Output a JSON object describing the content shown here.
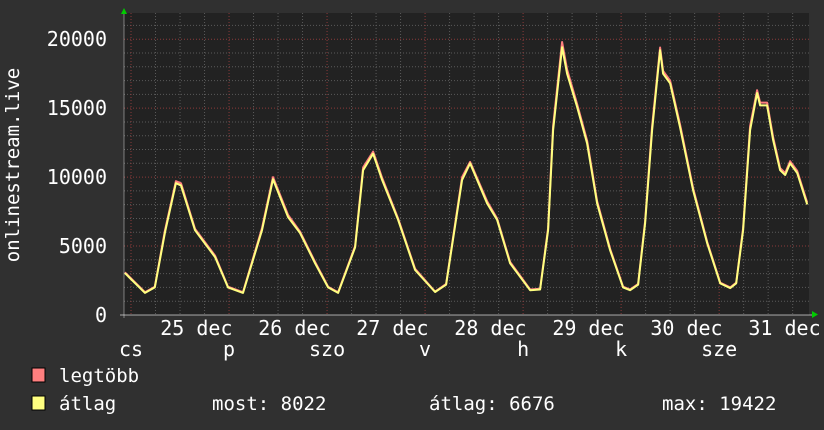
{
  "chart_data": {
    "type": "line",
    "ylabel": "onlinestream.live",
    "ylim": [
      0,
      21900
    ],
    "xlim": [
      "12-24 22:17",
      "12-31 22:00"
    ],
    "grid": true,
    "y_ticks": [
      0,
      5000,
      10000,
      15000,
      20000
    ],
    "x_tick_labels": [
      {
        "label": "cs",
        "at": "12-25 00:00"
      },
      {
        "label": "25 dec",
        "at": "12-25 16:00"
      },
      {
        "label": "p",
        "at": "12-26 00:00"
      },
      {
        "label": "26 dec",
        "at": "12-26 16:00"
      },
      {
        "label": "szo",
        "at": "12-27 00:00"
      },
      {
        "label": "27 dec",
        "at": "12-27 16:00"
      },
      {
        "label": "v",
        "at": "12-28 00:00"
      },
      {
        "label": "28 dec",
        "at": "12-28 16:00"
      },
      {
        "label": "h",
        "at": "12-29 00:00"
      },
      {
        "label": "29 dec",
        "at": "12-29 16:00"
      },
      {
        "label": "k",
        "at": "12-30 00:00"
      },
      {
        "label": "30 dec",
        "at": "12-30 16:00"
      },
      {
        "label": "sze",
        "at": "12-31 00:00"
      },
      {
        "label": "31 dec",
        "at": "12-31 16:00"
      }
    ],
    "x": [
      "12-24 22:30",
      "12-25 03:25",
      "12-25 05:50",
      "12-25 08:20",
      "12-25 11:00",
      "12-25 12:15",
      "12-25 15:40",
      "12-25 20:35",
      "12-25 23:45",
      "12-26 03:25",
      "12-26 08:05",
      "12-26 10:46",
      "12-26 14:27",
      "12-26 17:23",
      "12-26 21:04",
      "12-27 00:15",
      "12-27 02:42",
      "12-27 06:52",
      "12-27 08:49",
      "12-27 11:16",
      "12-27 13:28",
      "12-27 17:23",
      "12-27 21:33",
      "12-28 02:27",
      "12-28 05:09",
      "12-28 09:04",
      "12-28 11:01",
      "12-28 15:11",
      "12-28 17:38",
      "12-28 20:49",
      "12-29 01:43",
      "12-29 04:10",
      "12-29 06:07",
      "12-29 07:21",
      "12-29 09:33",
      "12-29 10:46",
      "12-29 13:13",
      "12-29 15:40",
      "12-29 18:07",
      "12-29 21:18",
      "12-30 00:29",
      "12-30 02:12",
      "12-30 04:09",
      "12-30 05:52",
      "12-30 07:35",
      "12-30 09:33",
      "12-30 10:17",
      "12-30 12:00",
      "12-30 14:27",
      "12-30 17:38",
      "12-30 21:04",
      "12-31 00:15",
      "12-31 02:42",
      "12-31 04:10",
      "12-31 05:52",
      "12-31 07:35",
      "12-31 09:18",
      "12-31 10:02",
      "12-31 11:45",
      "12-31 13:13",
      "12-31 14:55",
      "12-31 16:10",
      "12-31 17:23",
      "12-31 19:06",
      "12-31 21:33"
    ],
    "series": [
      {
        "name": "legtöbb",
        "color": "#ff7f7f",
        "values": [
          3100,
          1650,
          2050,
          6150,
          9700,
          9550,
          6250,
          4300,
          2050,
          1650,
          6300,
          10000,
          7250,
          6050,
          3850,
          2050,
          1650,
          5000,
          10700,
          11850,
          9950,
          7000,
          3350,
          1700,
          2250,
          10000,
          11100,
          8250,
          7000,
          3850,
          1850,
          1900,
          6300,
          13700,
          19800,
          17800,
          15300,
          12650,
          8250,
          4800,
          2050,
          1850,
          2250,
          6800,
          13700,
          19400,
          17700,
          17000,
          13800,
          9200,
          5300,
          2350,
          2000,
          2350,
          6300,
          13700,
          16300,
          15400,
          15400,
          12900,
          10650,
          10300,
          11150,
          10450,
          8150
        ]
      },
      {
        "name": "átlag",
        "color": "#ffff80",
        "values": [
          3040,
          1600,
          2000,
          6000,
          9560,
          9400,
          6150,
          4200,
          2000,
          1600,
          6150,
          9850,
          7100,
          5950,
          3750,
          2000,
          1600,
          4900,
          10500,
          11700,
          9800,
          6900,
          3260,
          1670,
          2200,
          9800,
          11000,
          8100,
          6900,
          3750,
          1800,
          1850,
          6150,
          13400,
          19422,
          17500,
          15100,
          12450,
          8100,
          4700,
          2000,
          1800,
          2200,
          6650,
          13400,
          19200,
          17500,
          16800,
          13600,
          9050,
          5200,
          2300,
          1950,
          2300,
          6150,
          13400,
          16100,
          15200,
          15200,
          12700,
          10500,
          10150,
          11000,
          10300,
          8022
        ]
      }
    ],
    "legend": [
      {
        "label": "legtöbb",
        "color": "#ff7f7f"
      },
      {
        "label": "átlag",
        "color": "#ffff80"
      }
    ],
    "legend_placement": "bottom-left",
    "stats": {
      "most": "most: 8022",
      "atlag": "átlag: 6676",
      "max": "max: 19422"
    }
  },
  "colors": {
    "background": "#303030",
    "plot": "#222222",
    "grid_minor": "#5a5a5a",
    "grid_major": "#8a3a3a",
    "arrow": "#00cc00"
  }
}
